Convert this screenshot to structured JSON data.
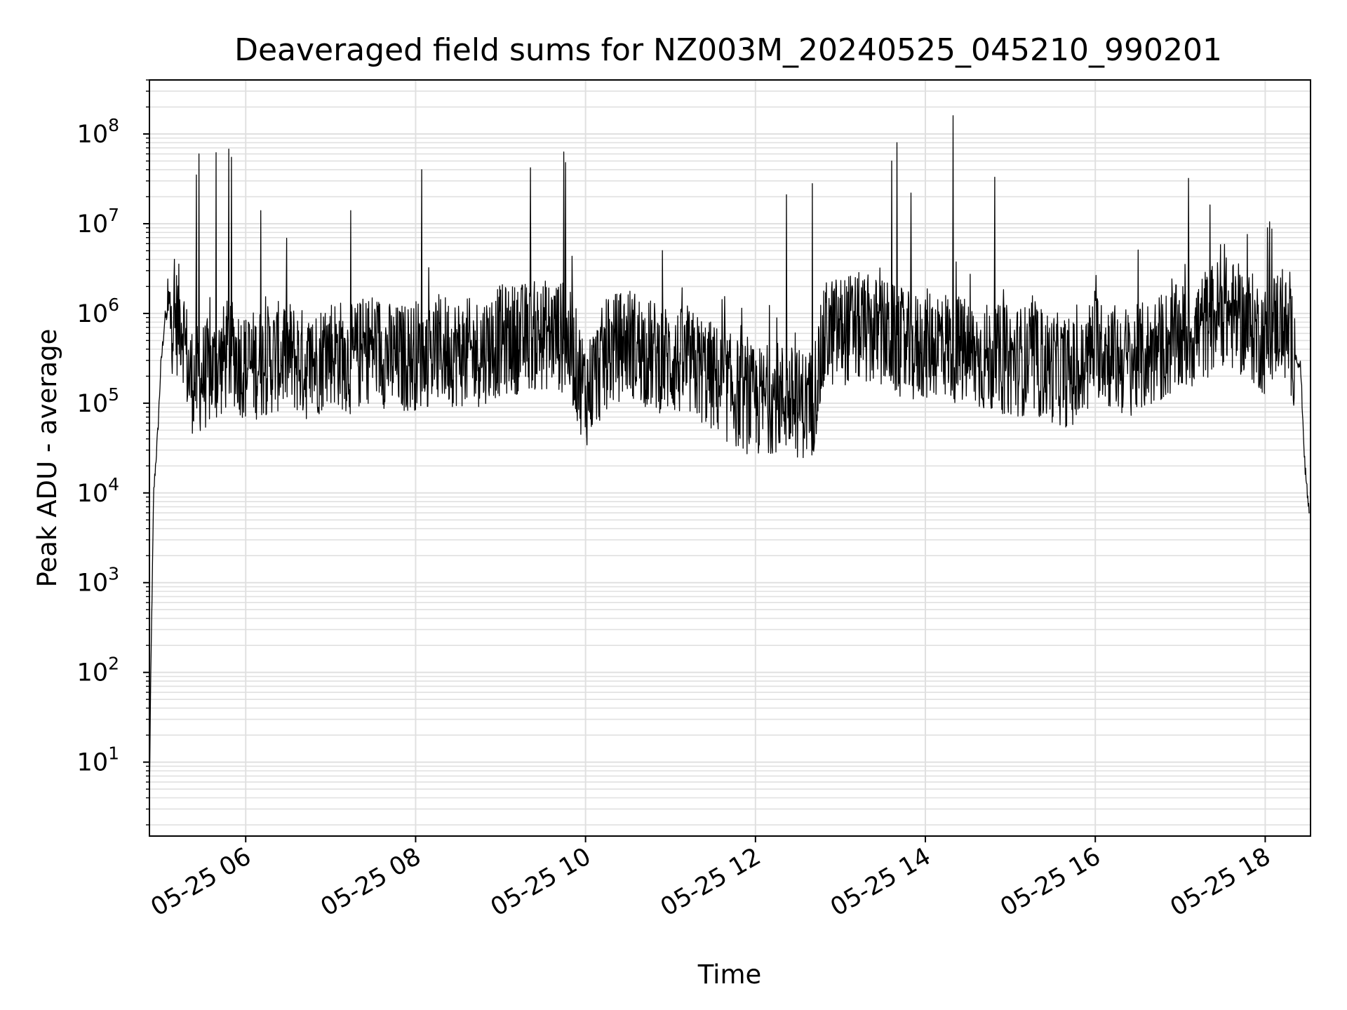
{
  "chart_data": {
    "type": "line",
    "title": "Deaveraged field sums for NZ003M_20240525_045210_990201",
    "xlabel": "Time",
    "ylabel": "Peak ADU - average",
    "y_scale": "log",
    "ylim": [
      1.5,
      400000000
    ],
    "xlim": [
      "05-25 04:52",
      "05-25 18:32"
    ],
    "x_ticks": [
      "05-25 06",
      "05-25 08",
      "05-25 10",
      "05-25 12",
      "05-25 14",
      "05-25 16",
      "05-25 18"
    ],
    "y_ticks": [
      {
        "base": "10",
        "exp": "1",
        "value": 10
      },
      {
        "base": "10",
        "exp": "2",
        "value": 100
      },
      {
        "base": "10",
        "exp": "3",
        "value": 1000
      },
      {
        "base": "10",
        "exp": "4",
        "value": 10000
      },
      {
        "base": "10",
        "exp": "5",
        "value": 100000
      },
      {
        "base": "10",
        "exp": "6",
        "value": 1000000
      },
      {
        "base": "10",
        "exp": "7",
        "value": 10000000
      },
      {
        "base": "10",
        "exp": "8",
        "value": 100000000
      }
    ],
    "grid": true,
    "line_color": "#000000",
    "series": [
      {
        "x": [
          "05-25 04:52",
          "05-25 04:53",
          "05-25 04:55",
          "05-25 04:58",
          "05-25 05:00",
          "05-25 05:03",
          "05-25 05:06",
          "05-25 05:10",
          "05-25 05:15",
          "05-25 05:20",
          "05-25 05:25",
          "05-25 05:30",
          "05-25 05:40",
          "05-25 05:50",
          "05-25 06:00",
          "05-25 06:15",
          "05-25 06:30",
          "05-25 06:45",
          "05-25 07:00",
          "05-25 07:15",
          "05-25 07:30",
          "05-25 07:45",
          "05-25 08:00",
          "05-25 08:20",
          "05-25 08:40",
          "05-25 09:00",
          "05-25 09:20",
          "05-25 09:40",
          "05-25 09:50",
          "05-25 10:00",
          "05-25 10:15",
          "05-25 10:30",
          "05-25 10:45",
          "05-25 11:00",
          "05-25 11:20",
          "05-25 11:40",
          "05-25 12:00",
          "05-25 12:15",
          "05-25 12:30",
          "05-25 12:40",
          "05-25 12:50",
          "05-25 13:10",
          "05-25 13:30",
          "05-25 13:50",
          "05-25 14:10",
          "05-25 14:30",
          "05-25 14:50",
          "05-25 15:10",
          "05-25 15:30",
          "05-25 15:50",
          "05-25 16:00",
          "05-25 16:15",
          "05-25 16:30",
          "05-25 16:50",
          "05-25 17:10",
          "05-25 17:30",
          "05-25 17:50",
          "05-25 18:00",
          "05-25 18:10",
          "05-25 18:20",
          "05-25 18:25",
          "05-25 18:28",
          "05-25 18:31"
        ],
        "y": [
          4,
          100,
          10000,
          50000,
          250000,
          900000,
          1000000,
          800000,
          900000,
          200000,
          180000,
          200000,
          250000,
          400000,
          250000,
          300000,
          350000,
          250000,
          400000,
          300000,
          450000,
          300000,
          350000,
          400000,
          350000,
          500000,
          550000,
          600000,
          400000,
          130000,
          350000,
          500000,
          350000,
          300000,
          250000,
          150000,
          100000,
          120000,
          100000,
          100000,
          600000,
          700000,
          600000,
          400000,
          500000,
          350000,
          300000,
          300000,
          250000,
          200000,
          500000,
          300000,
          300000,
          450000,
          600000,
          1100000,
          700000,
          500000,
          900000,
          400000,
          250000,
          20000,
          6000
        ]
      }
    ],
    "spikes": [
      {
        "x": "05-25 05:25",
        "y": 35000000
      },
      {
        "x": "05-25 05:27",
        "y": 60000000
      },
      {
        "x": "05-25 05:39",
        "y": 62000000
      },
      {
        "x": "05-25 05:48",
        "y": 68000000
      },
      {
        "x": "05-25 05:50",
        "y": 55000000
      },
      {
        "x": "05-25 06:11",
        "y": 14000000
      },
      {
        "x": "05-25 07:14",
        "y": 14000000
      },
      {
        "x": "05-25 08:04",
        "y": 40000000
      },
      {
        "x": "05-25 09:21",
        "y": 42000000
      },
      {
        "x": "05-25 09:45",
        "y": 63000000
      },
      {
        "x": "05-25 09:46",
        "y": 48000000
      },
      {
        "x": "05-25 12:22",
        "y": 21000000
      },
      {
        "x": "05-25 12:40",
        "y": 28000000
      },
      {
        "x": "05-25 13:36",
        "y": 50000000
      },
      {
        "x": "05-25 13:40",
        "y": 80000000
      },
      {
        "x": "05-25 13:50",
        "y": 22000000
      },
      {
        "x": "05-25 14:20",
        "y": 160000000
      },
      {
        "x": "05-25 14:49",
        "y": 33000000
      },
      {
        "x": "05-25 17:06",
        "y": 32000000
      },
      {
        "x": "05-25 18:02",
        "y": 9000000
      }
    ]
  }
}
